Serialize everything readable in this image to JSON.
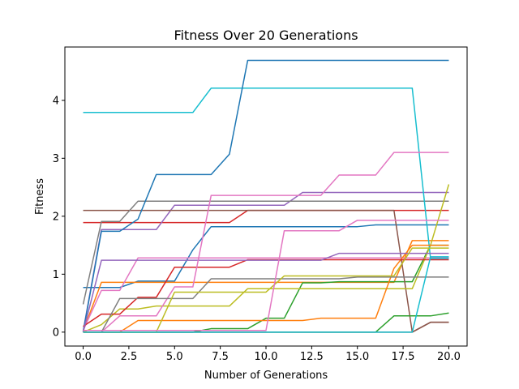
{
  "chart_data": {
    "type": "line",
    "title": "Fitness Over 20 Generations",
    "xlabel": "Number of Generations",
    "ylabel": "Fitness",
    "xlim": [
      -1,
      21
    ],
    "ylim": [
      -0.24,
      4.92
    ],
    "xticks": [
      "0.0",
      "2.5",
      "5.0",
      "7.5",
      "10.0",
      "12.5",
      "15.0",
      "17.5",
      "20.0"
    ],
    "xtick_values": [
      0,
      2.5,
      5,
      7.5,
      10,
      12.5,
      15,
      17.5,
      20
    ],
    "yticks": [
      "0",
      "1",
      "2",
      "3",
      "4"
    ],
    "ytick_values": [
      0,
      1,
      2,
      3,
      4
    ],
    "grid": false,
    "legend": "none",
    "x": [
      0,
      1,
      2,
      3,
      4,
      5,
      6,
      7,
      8,
      9,
      10,
      11,
      12,
      13,
      14,
      15,
      16,
      17,
      18,
      19,
      20
    ],
    "series": [
      {
        "color": "#1f77b4",
        "values": [
          0.77,
          0.77,
          0.77,
          0.88,
          0.88,
          0.88,
          1.42,
          1.82,
          1.82,
          1.82,
          1.82,
          1.82,
          1.82,
          1.82,
          1.82,
          1.82,
          1.85,
          1.85,
          1.85,
          1.85,
          1.85
        ]
      },
      {
        "color": "#ff7f0e",
        "values": [
          0.02,
          0.86,
          0.86,
          0.86,
          0.86,
          0.86,
          0.86,
          0.86,
          0.86,
          0.86,
          0.86,
          0.86,
          0.86,
          0.86,
          0.86,
          0.86,
          0.86,
          0.86,
          1.58,
          1.58,
          1.58
        ]
      },
      {
        "color": "#2ca02c",
        "values": [
          0.0,
          0.0,
          0.0,
          0.0,
          0.0,
          0.0,
          0.0,
          0.06,
          0.06,
          0.06,
          0.24,
          0.24,
          0.85,
          0.85,
          0.87,
          0.87,
          0.87,
          0.87,
          0.87,
          1.5,
          1.5
        ]
      },
      {
        "color": "#d62728",
        "values": [
          1.89,
          1.89,
          1.89,
          1.89,
          1.89,
          1.89,
          1.89,
          1.89,
          1.89,
          2.1,
          2.1,
          2.1,
          2.1,
          2.1,
          2.1,
          2.1,
          2.1,
          2.1,
          2.1,
          2.1,
          2.1
        ]
      },
      {
        "color": "#9467bd",
        "values": [
          0.02,
          1.77,
          1.77,
          1.77,
          1.77,
          2.19,
          2.19,
          2.19,
          2.19,
          2.19,
          2.19,
          2.19,
          2.41,
          2.41,
          2.41,
          2.41,
          2.41,
          2.41,
          2.41,
          2.41,
          2.41
        ]
      },
      {
        "color": "#8c564b",
        "values": [
          2.1,
          2.1,
          2.1,
          2.1,
          2.1,
          2.1,
          2.1,
          2.1,
          2.1,
          2.1,
          2.1,
          2.1,
          2.1,
          2.1,
          2.1,
          2.1,
          2.1,
          2.1,
          0.0,
          0.17,
          0.17
        ]
      },
      {
        "color": "#e377c2",
        "values": [
          0.03,
          0.72,
          0.72,
          1.28,
          1.28,
          1.28,
          1.28,
          1.28,
          1.28,
          1.28,
          1.28,
          1.28,
          1.28,
          1.28,
          1.28,
          1.28,
          1.28,
          1.28,
          1.28,
          1.28,
          1.28
        ]
      },
      {
        "color": "#7f7f7f",
        "values": [
          0.48,
          1.91,
          1.91,
          2.26,
          2.26,
          2.26,
          2.26,
          2.26,
          2.26,
          2.26,
          2.26,
          2.26,
          2.26,
          2.26,
          2.26,
          2.26,
          2.26,
          2.26,
          2.26,
          2.26,
          2.26
        ]
      },
      {
        "color": "#bcbd22",
        "values": [
          0.0,
          0.13,
          0.4,
          0.4,
          0.45,
          0.45,
          0.45,
          0.45,
          0.45,
          0.75,
          0.75,
          0.75,
          0.75,
          0.75,
          0.75,
          0.75,
          0.75,
          0.75,
          0.75,
          1.5,
          2.55
        ]
      },
      {
        "color": "#17becf",
        "values": [
          3.79,
          3.79,
          3.79,
          3.79,
          3.79,
          3.79,
          3.79,
          4.21,
          4.21,
          4.21,
          4.21,
          4.21,
          4.21,
          4.21,
          4.21,
          4.21,
          4.21,
          4.21,
          4.21,
          1.27,
          1.27
        ]
      },
      {
        "color": "#1f77b4",
        "values": [
          0.0,
          1.74,
          1.74,
          1.95,
          2.72,
          2.72,
          2.72,
          2.72,
          3.07,
          4.69,
          4.69,
          4.69,
          4.69,
          4.69,
          4.69,
          4.69,
          4.69,
          4.69,
          4.69,
          4.69,
          4.69
        ]
      },
      {
        "color": "#ff7f0e",
        "values": [
          0.0,
          0.0,
          0.0,
          0.2,
          0.2,
          0.2,
          0.2,
          0.2,
          0.2,
          0.2,
          0.2,
          0.2,
          0.2,
          0.24,
          0.24,
          0.24,
          0.24,
          1.1,
          1.5,
          1.5,
          1.5
        ]
      },
      {
        "color": "#2ca02c",
        "values": [
          0.0,
          0.0,
          0.0,
          0.0,
          0.0,
          0.0,
          0.0,
          0.0,
          0.0,
          0.0,
          0.0,
          0.0,
          0.0,
          0.0,
          0.0,
          0.0,
          0.0,
          0.28,
          0.28,
          0.28,
          0.33
        ]
      },
      {
        "color": "#d62728",
        "values": [
          0.1,
          0.31,
          0.31,
          0.6,
          0.6,
          1.12,
          1.12,
          1.12,
          1.12,
          1.25,
          1.25,
          1.25,
          1.25,
          1.25,
          1.25,
          1.25,
          1.25,
          1.25,
          1.25,
          1.25,
          1.25
        ]
      },
      {
        "color": "#9467bd",
        "values": [
          0.0,
          1.24,
          1.24,
          1.24,
          1.24,
          1.24,
          1.24,
          1.24,
          1.24,
          1.24,
          1.24,
          1.24,
          1.24,
          1.24,
          1.36,
          1.36,
          1.36,
          1.36,
          1.36,
          1.36,
          1.36
        ]
      },
      {
        "color": "#8c564b",
        "values": [
          0.0,
          0.0,
          0.0,
          0.0,
          0.0,
          0.0,
          0.0,
          0.0,
          0.0,
          0.0,
          0.0,
          0.0,
          0.0,
          0.0,
          0.0,
          0.0,
          0.0,
          0.0,
          0.0,
          0.17,
          0.17
        ]
      },
      {
        "color": "#e377c2",
        "values": [
          0.0,
          0.0,
          0.28,
          0.28,
          0.28,
          0.78,
          0.78,
          2.36,
          2.36,
          2.36,
          2.36,
          2.36,
          2.36,
          2.36,
          2.71,
          2.71,
          2.71,
          3.1,
          3.1,
          3.1,
          3.1
        ]
      },
      {
        "color": "#7f7f7f",
        "values": [
          0.0,
          0.0,
          0.58,
          0.58,
          0.58,
          0.58,
          0.58,
          0.92,
          0.92,
          0.92,
          0.92,
          0.92,
          0.92,
          0.92,
          0.92,
          0.95,
          0.95,
          0.95,
          0.95,
          0.95,
          0.95
        ]
      },
      {
        "color": "#bcbd22",
        "values": [
          0.0,
          0.0,
          0.0,
          0.0,
          0.0,
          0.69,
          0.69,
          0.69,
          0.69,
          0.69,
          0.69,
          0.97,
          0.97,
          0.97,
          0.97,
          0.97,
          0.97,
          0.97,
          1.45,
          1.45,
          1.45
        ]
      },
      {
        "color": "#17becf",
        "values": [
          0.0,
          0.0,
          0.0,
          0.0,
          0.0,
          0.0,
          0.0,
          0.0,
          0.0,
          0.0,
          0.0,
          0.0,
          0.0,
          0.0,
          0.0,
          0.0,
          0.0,
          0.0,
          0.0,
          1.3,
          1.3
        ]
      },
      {
        "color": "#e377c2",
        "values": [
          0.03,
          0.03,
          0.03,
          0.03,
          0.03,
          0.03,
          0.03,
          0.03,
          0.03,
          0.03,
          0.03,
          1.75,
          1.75,
          1.75,
          1.75,
          1.93,
          1.93,
          1.93,
          1.93,
          1.93,
          1.93
        ]
      }
    ]
  }
}
